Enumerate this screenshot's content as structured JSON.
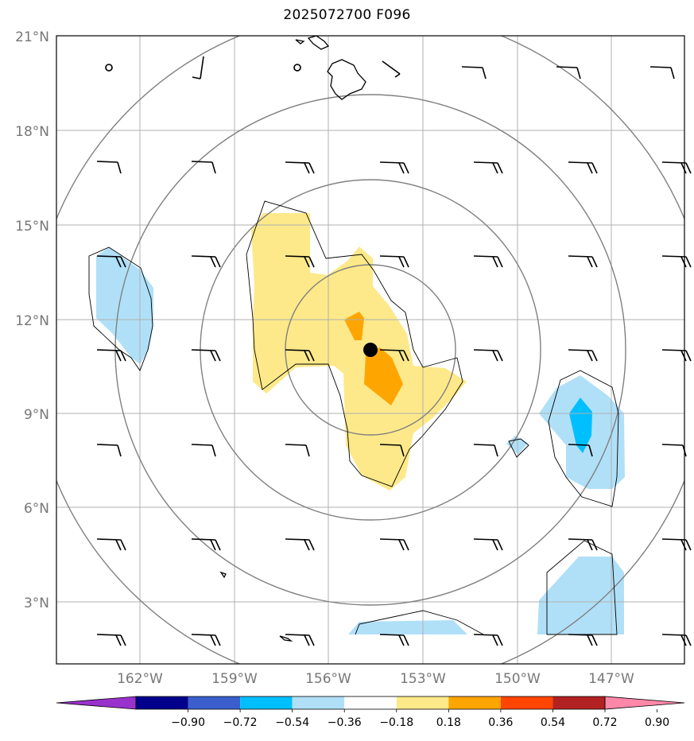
{
  "title": "2025072700 F096",
  "map": {
    "lat_labels": [
      "21°N",
      "18°N",
      "15°N",
      "12°N",
      "9°N",
      "6°N",
      "3°N"
    ],
    "lon_labels": [
      "162°W",
      "159°W",
      "156°W",
      "153°W",
      "150°W",
      "147°W"
    ],
    "extent": {
      "west": "164.6°W",
      "east": "144.6°W",
      "south": "1°N",
      "north": "21°N"
    },
    "storm_center": {
      "lat": 11.0,
      "lon": -154.7
    }
  },
  "colorbar": {
    "ticks": [
      "−0.90",
      "−0.72",
      "−0.54",
      "−0.36",
      "−0.18",
      "0.18",
      "0.36",
      "0.54",
      "0.72",
      "0.90"
    ],
    "colors": [
      "#9932cc",
      "#00008b",
      "#3a5fcd",
      "#00bfff",
      "#b0e0f8",
      "#ffffff",
      "#fde98a",
      "#ffa500",
      "#ff4500",
      "#b22222",
      "#ff88aa"
    ]
  }
}
